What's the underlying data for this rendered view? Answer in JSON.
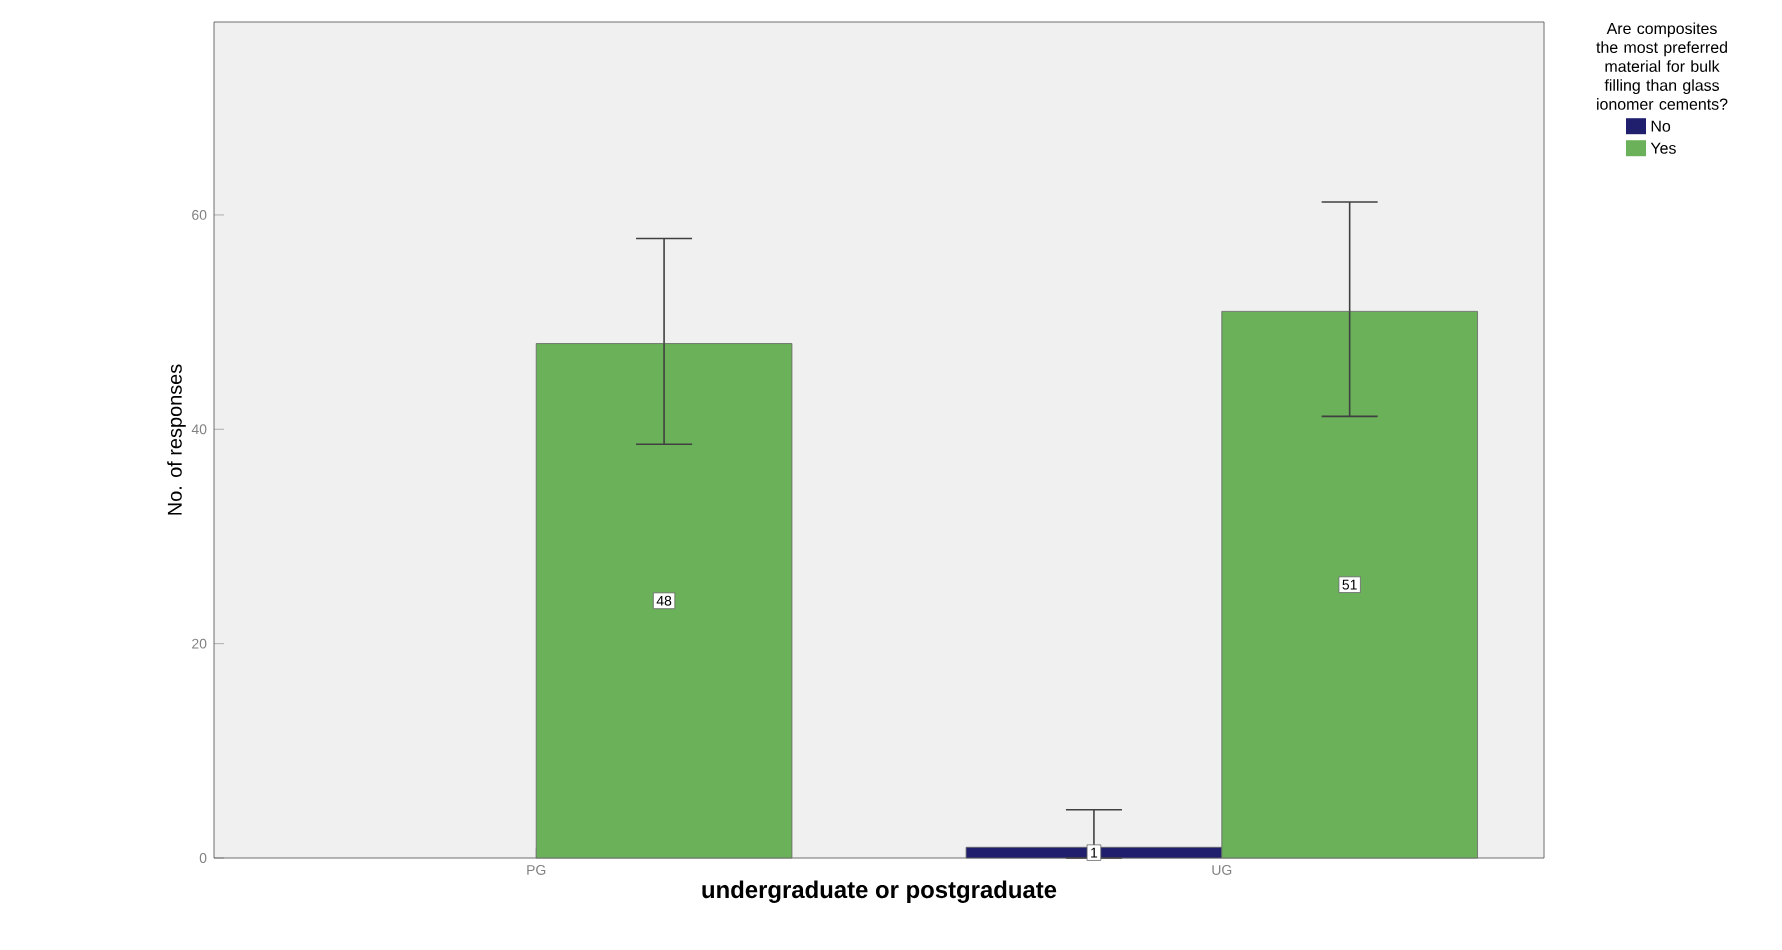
{
  "chart_data": {
    "type": "bar",
    "xlabel": "undergraduate or postgraduate",
    "ylabel": "No. of responses",
    "legend_title": "Are composites the most preferred material for bulk filling than glass ionomer cements?",
    "legend": "right",
    "categories": [
      "PG",
      "UG"
    ],
    "ylim": [
      0,
      78
    ],
    "yticks": [
      0,
      20,
      40,
      60
    ],
    "series": [
      {
        "name": "No",
        "color": "#1f1f6e",
        "values": [
          null,
          1
        ],
        "errors": [
          null,
          [
            0,
            4.5
          ]
        ],
        "value_labels": [
          null,
          "1"
        ]
      },
      {
        "name": "Yes",
        "color": "#6ab15a",
        "values": [
          48,
          51
        ],
        "errors": [
          [
            38.6,
            57.8
          ],
          [
            41.2,
            61.2
          ]
        ],
        "value_labels": [
          "48",
          "51"
        ]
      }
    ]
  }
}
